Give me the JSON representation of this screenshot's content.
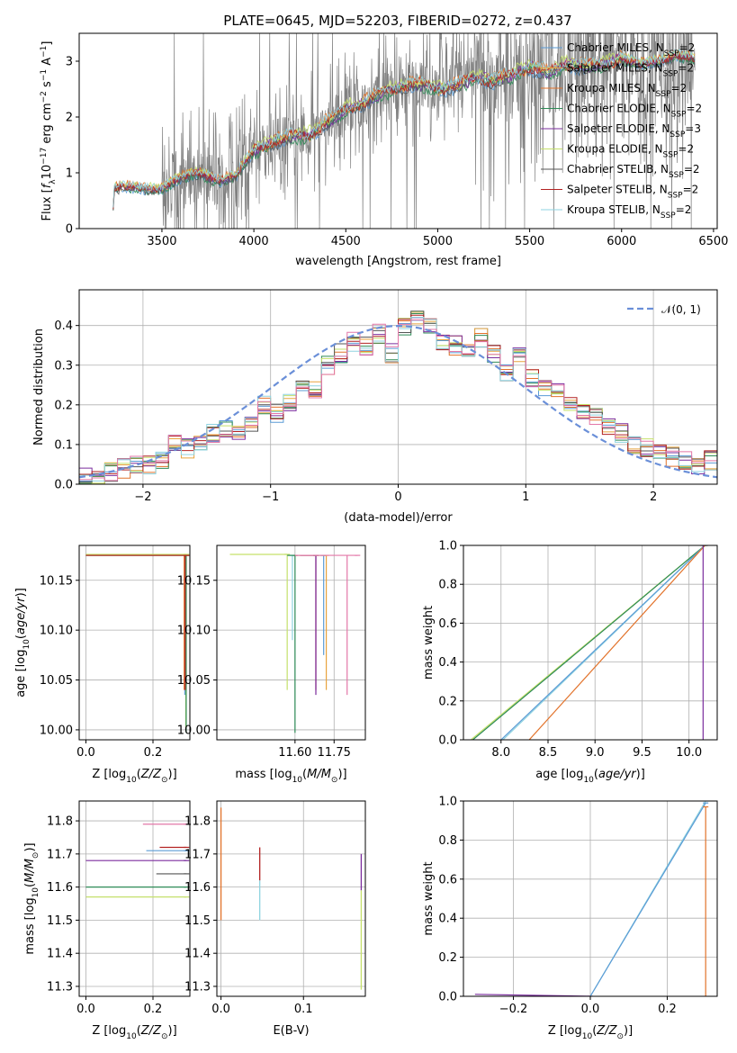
{
  "title": "PLATE=0645, MJD=52203, FIBERID=0272, z=0.437",
  "colors": {
    "Chabrier MILES": "#5b9bd5",
    "Salpeter MILES": "#e8a33d",
    "Kroupa MILES": "#e2722a",
    "Chabrier ELODIE": "#2e8b57",
    "Salpeter ELODIE": "#7b2d9e",
    "Kroupa ELODIE": "#c5e06b",
    "Chabrier STELIB": "#555555",
    "Salpeter STELIB": "#b22222",
    "Kroupa STELIB": "#8fd3e0",
    "pink": "#e377a8",
    "observed": "#808080",
    "normal": "#6a8fd8"
  },
  "chart_data": [
    {
      "id": "spectrum",
      "type": "line",
      "title": "PLATE=0645, MJD=52203, FIBERID=0272, z=0.437",
      "xlabel": "wavelength [Angstrom, rest frame]",
      "ylabel": "Flux [f_λ 10^-17 erg cm^-2 s^-1 A^-1]",
      "xlim": [
        3050,
        6520
      ],
      "ylim": [
        0,
        3.5
      ],
      "xticks": [
        3500,
        4000,
        4500,
        5000,
        5500,
        6000,
        6500
      ],
      "yticks": [
        0,
        1,
        2,
        3
      ],
      "legend_position": "top-right",
      "legend": [
        {
          "label": "Chabrier MILES, N",
          "sub": "SSP",
          "suffix": "=2"
        },
        {
          "label": "Salpeter MILES, N",
          "sub": "SSP",
          "suffix": "=2"
        },
        {
          "label": "Kroupa MILES, N",
          "sub": "SSP",
          "suffix": "=2"
        },
        {
          "label": "Chabrier ELODIE, N",
          "sub": "SSP",
          "suffix": "=2"
        },
        {
          "label": "Salpeter ELODIE, N",
          "sub": "SSP",
          "suffix": "=3"
        },
        {
          "label": "Kroupa ELODIE, N",
          "sub": "SSP",
          "suffix": "=2"
        },
        {
          "label": "Chabrier STELIB, N",
          "sub": "SSP",
          "suffix": "=2"
        },
        {
          "label": "Salpeter STELIB, N",
          "sub": "SSP",
          "suffix": "=2"
        },
        {
          "label": "Kroupa STELIB, N",
          "sub": "SSP",
          "suffix": "=2"
        }
      ],
      "continuum_knots": [
        [
          3230,
          0.0
        ],
        [
          3240,
          0.72
        ],
        [
          3300,
          0.76
        ],
        [
          3400,
          0.72
        ],
        [
          3500,
          0.7
        ],
        [
          3600,
          0.92
        ],
        [
          3700,
          1.0
        ],
        [
          3800,
          0.85
        ],
        [
          3900,
          0.95
        ],
        [
          4000,
          1.4
        ],
        [
          4100,
          1.55
        ],
        [
          4200,
          1.65
        ],
        [
          4300,
          1.68
        ],
        [
          4400,
          1.9
        ],
        [
          4500,
          2.15
        ],
        [
          4600,
          2.25
        ],
        [
          4700,
          2.45
        ],
        [
          4800,
          2.55
        ],
        [
          4900,
          2.6
        ],
        [
          5000,
          2.5
        ],
        [
          5100,
          2.55
        ],
        [
          5200,
          2.7
        ],
        [
          5300,
          2.65
        ],
        [
          5400,
          2.75
        ],
        [
          5500,
          2.9
        ],
        [
          5600,
          2.8
        ],
        [
          5700,
          2.95
        ],
        [
          5800,
          2.9
        ],
        [
          5900,
          2.95
        ],
        [
          6000,
          3.05
        ],
        [
          6100,
          2.95
        ],
        [
          6200,
          3.0
        ],
        [
          6300,
          3.1
        ],
        [
          6400,
          3.05
        ]
      ],
      "model_x_range": [
        3230,
        6400
      ]
    },
    {
      "id": "residuals",
      "type": "line",
      "xlabel": "(data-model)/error",
      "ylabel": "Normed distribution",
      "xlim": [
        -2.5,
        2.5
      ],
      "ylim": [
        0,
        0.49
      ],
      "xticks": [
        -2,
        -1,
        0,
        1,
        2
      ],
      "yticks": [
        0.0,
        0.1,
        0.2,
        0.3,
        0.4
      ],
      "legend_position": "top-right",
      "legend": [
        "𝒩(0, 1)"
      ],
      "bins": [
        -2.5,
        -2.4,
        -2.3,
        -2.2,
        -2.1,
        -2.0,
        -1.9,
        -1.8,
        -1.7,
        -1.6,
        -1.5,
        -1.4,
        -1.3,
        -1.2,
        -1.1,
        -1.0,
        -0.9,
        -0.8,
        -0.7,
        -0.6,
        -0.5,
        -0.4,
        -0.3,
        -0.2,
        -0.1,
        0.0,
        0.1,
        0.2,
        0.3,
        0.4,
        0.5,
        0.6,
        0.7,
        0.8,
        0.9,
        1.0,
        1.1,
        1.2,
        1.3,
        1.4,
        1.5,
        1.6,
        1.7,
        1.8,
        1.9,
        2.0,
        2.1,
        2.2,
        2.3,
        2.4,
        2.5
      ],
      "histogram_mean": [
        0.02,
        0.02,
        0.03,
        0.04,
        0.05,
        0.05,
        0.06,
        0.1,
        0.09,
        0.11,
        0.13,
        0.14,
        0.13,
        0.15,
        0.2,
        0.18,
        0.21,
        0.25,
        0.24,
        0.3,
        0.33,
        0.36,
        0.35,
        0.38,
        0.33,
        0.4,
        0.42,
        0.4,
        0.36,
        0.35,
        0.34,
        0.37,
        0.33,
        0.28,
        0.32,
        0.27,
        0.24,
        0.23,
        0.2,
        0.18,
        0.17,
        0.15,
        0.13,
        0.1,
        0.09,
        0.08,
        0.07,
        0.06,
        0.05,
        0.06
      ],
      "normal_curve": {
        "mean": 0,
        "sigma": 1
      }
    },
    {
      "id": "age-vs-Z",
      "type": "line",
      "xlabel": "Z [log10(Z/Z⊙)]",
      "ylabel": "age  [log10(age/yr)]",
      "xlim": [
        -0.02,
        0.31
      ],
      "ylim": [
        9.99,
        10.185
      ],
      "xticks": [
        0.0,
        0.2
      ],
      "yticks": [
        10.0,
        10.05,
        10.1,
        10.15
      ],
      "series": [
        {
          "name": "Chabrier MILES",
          "x": [
            0.0,
            0.3
          ],
          "y": [
            10.175,
            10.175
          ],
          "drop": [
            0.295,
            10.175,
            10.035
          ]
        },
        {
          "name": "Kroupa ELODIE",
          "x": [
            0.0,
            0.3
          ],
          "y": [
            10.176,
            10.176
          ],
          "drop": [
            0.298,
            10.176,
            10.0
          ]
        },
        {
          "name": "Chabrier ELODIE",
          "x": [
            0.0,
            0.3
          ],
          "y": [
            10.175,
            10.175
          ],
          "drop": [
            0.299,
            10.175,
            9.997
          ]
        },
        {
          "name": "Kroupa MILES",
          "x": [
            0.0,
            0.3
          ],
          "y": [
            10.175,
            10.175
          ],
          "drop": [
            0.293,
            10.175,
            10.04
          ]
        },
        {
          "name": "Salpeter STELIB",
          "x": [
            0.0,
            0.3
          ],
          "y": [
            10.175,
            10.175
          ],
          "drop": [
            0.296,
            10.175,
            10.04
          ]
        }
      ]
    },
    {
      "id": "age-vs-mass",
      "type": "line",
      "xlabel": "mass [log10(M/M⊙)]",
      "ylabel": "",
      "xlim": [
        11.3,
        11.87
      ],
      "ylim": [
        9.99,
        10.185
      ],
      "xticks": [
        11.6,
        11.75
      ],
      "yticks": [
        10.0,
        10.05,
        10.1,
        10.15
      ],
      "series": [
        {
          "name": "Kroupa ELODIE",
          "x": [
            11.35,
            11.57
          ],
          "y": [
            10.176,
            10.176
          ],
          "drop": [
            11.57,
            10.176,
            10.04
          ]
        },
        {
          "name": "Kroupa STELIB",
          "x": [
            11.57,
            11.59
          ],
          "y": [
            10.175,
            10.175
          ],
          "drop": [
            11.59,
            10.175,
            10.09
          ]
        },
        {
          "name": "Chabrier ELODIE",
          "x": [
            11.57,
            11.6
          ],
          "y": [
            10.175,
            10.175
          ],
          "drop": [
            11.6,
            10.175,
            9.997
          ]
        },
        {
          "name": "Salpeter STELIB",
          "x": [
            11.6,
            11.68
          ],
          "y": [
            10.175,
            10.175
          ],
          "drop": [
            11.68,
            10.175,
            10.04
          ]
        },
        {
          "name": "Salpeter ELODIE",
          "x": [
            11.62,
            11.68
          ],
          "y": [
            10.175,
            10.175
          ],
          "drop": [
            11.68,
            10.175,
            10.035
          ]
        },
        {
          "name": "Chabrier MILES",
          "x": [
            11.62,
            11.71
          ],
          "y": [
            10.175,
            10.175
          ],
          "drop": [
            11.71,
            10.175,
            10.075
          ]
        },
        {
          "name": "Salpeter MILES",
          "x": [
            11.62,
            11.72
          ],
          "y": [
            10.175,
            10.175
          ],
          "drop": [
            11.72,
            10.175,
            10.04
          ]
        },
        {
          "name": "pink",
          "x": [
            11.6,
            11.84
          ],
          "y": [
            10.175,
            10.175
          ],
          "drop": [
            11.8,
            10.175,
            10.035
          ]
        }
      ]
    },
    {
      "id": "mass-weight-vs-age",
      "type": "line",
      "xlabel": "age  [log10(age/yr)]",
      "ylabel": "mass weight",
      "xlim": [
        7.6,
        10.3
      ],
      "ylim": [
        0,
        1.0
      ],
      "xticks": [
        8.0,
        8.5,
        9.0,
        9.5,
        10.0
      ],
      "yticks": [
        0.0,
        0.2,
        0.4,
        0.6,
        0.8,
        1.0
      ],
      "series": [
        {
          "name": "Kroupa ELODIE",
          "x": [
            7.68,
            10.17
          ],
          "y": [
            0.0,
            1.0
          ]
        },
        {
          "name": "Chabrier ELODIE",
          "x": [
            7.7,
            10.17
          ],
          "y": [
            0.0,
            1.0
          ]
        },
        {
          "name": "Kroupa STELIB",
          "x": [
            8.02,
            10.17
          ],
          "y": [
            0.0,
            1.0
          ]
        },
        {
          "name": "Chabrier MILES",
          "x": [
            8.0,
            10.17
          ],
          "y": [
            0.0,
            1.0
          ]
        },
        {
          "name": "Kroupa MILES",
          "x": [
            8.3,
            10.17
          ],
          "y": [
            0.0,
            1.0
          ]
        },
        {
          "name": "Salpeter ELODIE",
          "x": [
            10.15,
            10.15
          ],
          "y": [
            0.0,
            1.0
          ]
        }
      ]
    },
    {
      "id": "mass-vs-Z",
      "type": "line",
      "xlabel": "Z [log10(Z/Z⊙)]",
      "ylabel": "mass [log10(M/M⊙)]",
      "xlim": [
        -0.02,
        0.31
      ],
      "ylim": [
        11.27,
        11.86
      ],
      "xticks": [
        0.0,
        0.2
      ],
      "yticks": [
        11.3,
        11.4,
        11.5,
        11.6,
        11.7,
        11.8
      ],
      "series": [
        {
          "name": "pink",
          "x": [
            0.17,
            0.3
          ],
          "y": [
            11.79,
            11.79
          ]
        },
        {
          "name": "Chabrier MILES",
          "x": [
            0.18,
            0.3
          ],
          "y": [
            11.71,
            11.71
          ]
        },
        {
          "name": "Salpeter ELODIE",
          "x": [
            0.0,
            0.3
          ],
          "y": [
            11.68,
            11.68
          ]
        },
        {
          "name": "Salpeter STELIB",
          "x": [
            0.22,
            0.3
          ],
          "y": [
            11.72,
            11.72
          ]
        },
        {
          "name": "Chabrier STELIB",
          "x": [
            0.21,
            0.3
          ],
          "y": [
            11.64,
            11.64
          ]
        },
        {
          "name": "Chabrier ELODIE",
          "x": [
            0.0,
            0.3
          ],
          "y": [
            11.6,
            11.6
          ]
        },
        {
          "name": "Kroupa ELODIE",
          "x": [
            0.0,
            0.3
          ],
          "y": [
            11.57,
            11.57
          ]
        }
      ]
    },
    {
      "id": "mass-vs-EBV",
      "type": "line",
      "xlabel": "E(B-V)",
      "ylabel": "",
      "xlim": [
        -0.005,
        0.175
      ],
      "ylim": [
        11.27,
        11.86
      ],
      "xticks": [
        0.0,
        0.1
      ],
      "yticks": [
        11.3,
        11.4,
        11.5,
        11.6,
        11.7,
        11.8
      ],
      "series": [
        {
          "name": "Kroupa MILES",
          "x": [
            0.0,
            0.0
          ],
          "y": [
            11.5,
            11.84
          ]
        },
        {
          "name": "Salpeter STELIB",
          "x": [
            0.047,
            0.047
          ],
          "y": [
            11.62,
            11.72
          ]
        },
        {
          "name": "Kroupa STELIB",
          "x": [
            0.047,
            0.047
          ],
          "y": [
            11.5,
            11.62
          ]
        },
        {
          "name": "Salpeter ELODIE",
          "x": [
            0.17,
            0.17
          ],
          "y": [
            11.59,
            11.7
          ]
        },
        {
          "name": "Kroupa ELODIE",
          "x": [
            0.17,
            0.17
          ],
          "y": [
            11.29,
            11.59
          ]
        }
      ]
    },
    {
      "id": "mass-weight-vs-Z",
      "type": "line",
      "xlabel": "Z [log10(Z/Z⊙)]",
      "ylabel": "mass weight",
      "xlim": [
        -0.33,
        0.33
      ],
      "ylim": [
        0,
        1.0
      ],
      "xticks": [
        -0.2,
        0.0,
        0.2
      ],
      "yticks": [
        0.0,
        0.2,
        0.4,
        0.6,
        0.8,
        1.0
      ],
      "series": [
        {
          "name": "Salpeter ELODIE",
          "x": [
            -0.3,
            0.0
          ],
          "y": [
            0.01,
            0.0
          ]
        },
        {
          "name": "Kroupa STELIB",
          "x": [
            0.0,
            0.3
          ],
          "y": [
            0.0,
            1.0
          ]
        },
        {
          "name": "Chabrier MILES",
          "x": [
            0.0,
            0.3
          ],
          "y": [
            0.0,
            0.99
          ]
        },
        {
          "name": "Kroupa MILES",
          "x": [
            0.3,
            0.3
          ],
          "y": [
            0.0,
            0.97
          ]
        }
      ]
    }
  ]
}
